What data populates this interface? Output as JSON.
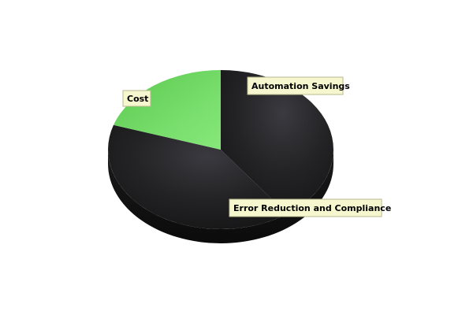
{
  "chart_data": {
    "type": "pie",
    "style": "3d",
    "slices": [
      {
        "label": "Automation Savings",
        "value": 0.4,
        "color": "#2a2a2e"
      },
      {
        "label": "Error Reduction and Compliance",
        "value": 0.4,
        "color": "#1e1e20"
      },
      {
        "label": "Cost",
        "value": 0.2,
        "color": "#6fd262"
      }
    ],
    "label_style": {
      "box_fill": "#f6f7cf",
      "box_stroke": "#b9b98e",
      "text_color": "#000000"
    },
    "legend": "none",
    "title": ""
  }
}
